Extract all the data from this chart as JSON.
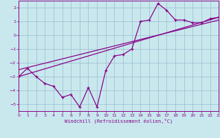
{
  "xlabel": "Windchill (Refroidissement éolien,°C)",
  "bg_color": "#c8e8ee",
  "grid_color": "#99bbcc",
  "line_color": "#880088",
  "xlim": [
    0,
    23
  ],
  "ylim": [
    -5.5,
    2.5
  ],
  "xticks": [
    0,
    1,
    2,
    3,
    4,
    5,
    6,
    7,
    8,
    9,
    10,
    11,
    12,
    13,
    14,
    15,
    16,
    17,
    18,
    19,
    20,
    21,
    22,
    23
  ],
  "yticks": [
    -5,
    -4,
    -3,
    -2,
    -1,
    0,
    1,
    2
  ],
  "data_x": [
    0,
    1,
    2,
    3,
    4,
    5,
    6,
    7,
    8,
    9,
    10,
    11,
    12,
    13,
    14,
    15,
    16,
    17,
    18,
    19,
    20,
    21,
    22,
    23
  ],
  "data_y": [
    -3.0,
    -2.4,
    -3.0,
    -3.5,
    -3.7,
    -4.5,
    -4.3,
    -5.2,
    -3.8,
    -5.2,
    -2.55,
    -1.5,
    -1.4,
    -1.0,
    1.0,
    1.1,
    2.3,
    1.8,
    1.1,
    1.1,
    0.9,
    0.9,
    1.2,
    1.3
  ],
  "trend1_x": [
    0,
    23
  ],
  "trend1_y": [
    -3.0,
    1.3
  ],
  "trend2_x": [
    0,
    23
  ],
  "trend2_y": [
    -2.5,
    1.1
  ]
}
